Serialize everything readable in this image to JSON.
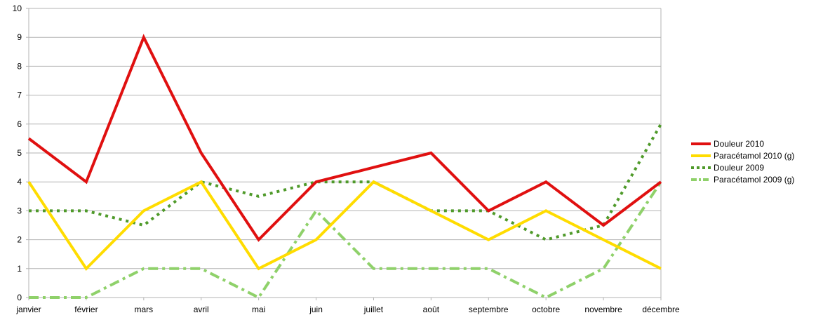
{
  "chart_data": {
    "type": "line",
    "categories": [
      "janvier",
      "février",
      "mars",
      "avril",
      "mai",
      "juin",
      "juillet",
      "août",
      "septembre",
      "octobre",
      "novembre",
      "décembre"
    ],
    "series": [
      {
        "name": "Douleur 2010",
        "values": [
          5.5,
          4,
          9,
          5,
          2,
          4,
          4.5,
          5,
          3,
          4,
          2.5,
          4
        ],
        "color": "#e01010",
        "style": "solid"
      },
      {
        "name": "Paracétamol 2010 (g)",
        "values": [
          4,
          1,
          3,
          4,
          1,
          2,
          4,
          3,
          2,
          3,
          2,
          1
        ],
        "color": "#ffdc00",
        "style": "solid"
      },
      {
        "name": "Douleur 2009",
        "values": [
          3,
          3,
          2.5,
          4,
          3.5,
          4,
          4,
          3,
          3,
          2,
          2.5,
          6
        ],
        "color": "#4f9a2a",
        "style": "dotted"
      },
      {
        "name": "Paracétamol 2009 (g)",
        "values": [
          0,
          0,
          1,
          1,
          0,
          3,
          1,
          1,
          1,
          0,
          1,
          4
        ],
        "color": "#8fd16a",
        "style": "dash-dot"
      }
    ],
    "yticks": [
      0,
      1,
      2,
      3,
      4,
      5,
      6,
      7,
      8,
      9,
      10
    ],
    "ylim": [
      0,
      10
    ],
    "grid": "horizontal",
    "legend": "right",
    "title": "",
    "xlabel": "",
    "ylabel": ""
  }
}
